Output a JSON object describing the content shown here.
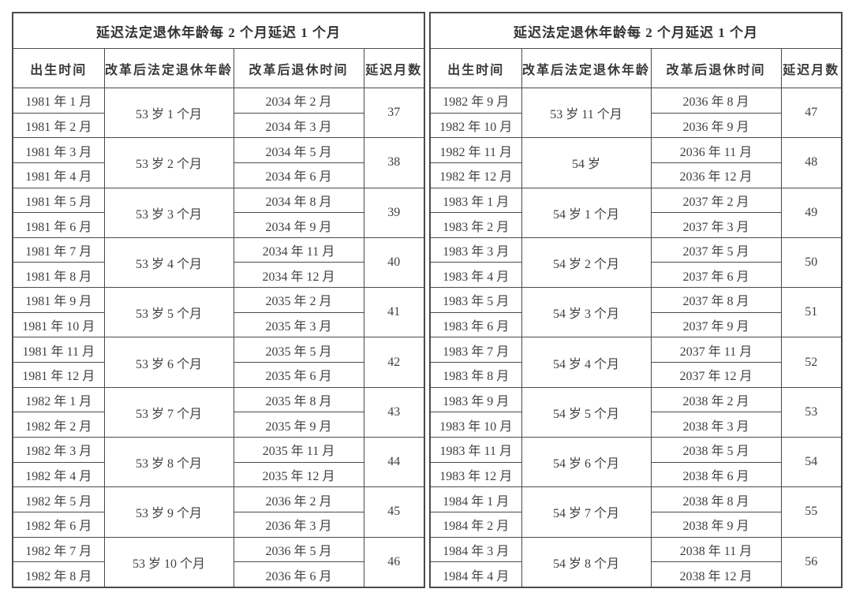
{
  "colors": {
    "background": "#ffffff",
    "border": "#4a4a4a",
    "text": "#404040",
    "header_text": "#333333"
  },
  "tables": [
    {
      "title": "延迟法定退休年龄每 2 个月延迟 1 个月",
      "columns": [
        "出生时间",
        "改革后法定退休年龄",
        "改革后退休时间",
        "延迟月数"
      ],
      "groups": [
        {
          "births": [
            "1981 年 1 月",
            "1981 年 2 月"
          ],
          "age": "53 岁 1 个月",
          "retirements": [
            "2034 年 2 月",
            "2034 年 3 月"
          ],
          "delay_months": "37"
        },
        {
          "births": [
            "1981 年 3 月",
            "1981 年 4 月"
          ],
          "age": "53 岁 2 个月",
          "retirements": [
            "2034 年 5 月",
            "2034 年 6 月"
          ],
          "delay_months": "38"
        },
        {
          "births": [
            "1981 年 5 月",
            "1981 年 6 月"
          ],
          "age": "53 岁 3 个月",
          "retirements": [
            "2034 年 8 月",
            "2034 年 9 月"
          ],
          "delay_months": "39"
        },
        {
          "births": [
            "1981 年 7 月",
            "1981 年 8 月"
          ],
          "age": "53 岁 4 个月",
          "retirements": [
            "2034 年 11 月",
            "2034 年 12 月"
          ],
          "delay_months": "40"
        },
        {
          "births": [
            "1981 年 9 月",
            "1981 年 10 月"
          ],
          "age": "53 岁 5 个月",
          "retirements": [
            "2035 年 2 月",
            "2035 年 3 月"
          ],
          "delay_months": "41"
        },
        {
          "births": [
            "1981 年 11 月",
            "1981 年 12 月"
          ],
          "age": "53 岁 6 个月",
          "retirements": [
            "2035 年 5 月",
            "2035 年 6 月"
          ],
          "delay_months": "42"
        },
        {
          "births": [
            "1982 年 1 月",
            "1982 年 2 月"
          ],
          "age": "53 岁 7 个月",
          "retirements": [
            "2035 年 8 月",
            "2035 年 9 月"
          ],
          "delay_months": "43"
        },
        {
          "births": [
            "1982 年 3 月",
            "1982 年 4 月"
          ],
          "age": "53 岁 8 个月",
          "retirements": [
            "2035 年 11 月",
            "2035 年 12 月"
          ],
          "delay_months": "44"
        },
        {
          "births": [
            "1982 年 5 月",
            "1982 年 6 月"
          ],
          "age": "53 岁 9 个月",
          "retirements": [
            "2036 年 2 月",
            "2036 年 3 月"
          ],
          "delay_months": "45"
        },
        {
          "births": [
            "1982 年 7 月",
            "1982 年 8 月"
          ],
          "age": "53 岁 10 个月",
          "retirements": [
            "2036 年 5 月",
            "2036 年 6 月"
          ],
          "delay_months": "46"
        }
      ]
    },
    {
      "title": "延迟法定退休年龄每 2 个月延迟 1 个月",
      "columns": [
        "出生时间",
        "改革后法定退休年龄",
        "改革后退休时间",
        "延迟月数"
      ],
      "groups": [
        {
          "births": [
            "1982 年 9 月",
            "1982 年 10 月"
          ],
          "age": "53 岁 11 个月",
          "retirements": [
            "2036 年 8 月",
            "2036 年 9 月"
          ],
          "delay_months": "47"
        },
        {
          "births": [
            "1982 年 11 月",
            "1982 年 12 月"
          ],
          "age": "54 岁",
          "retirements": [
            "2036 年 11 月",
            "2036 年 12 月"
          ],
          "delay_months": "48"
        },
        {
          "births": [
            "1983 年 1 月",
            "1983 年 2 月"
          ],
          "age": "54 岁 1 个月",
          "retirements": [
            "2037 年 2 月",
            "2037 年 3 月"
          ],
          "delay_months": "49"
        },
        {
          "births": [
            "1983 年 3 月",
            "1983 年 4 月"
          ],
          "age": "54 岁 2 个月",
          "retirements": [
            "2037 年 5 月",
            "2037 年 6 月"
          ],
          "delay_months": "50"
        },
        {
          "births": [
            "1983 年 5 月",
            "1983 年 6 月"
          ],
          "age": "54 岁 3 个月",
          "retirements": [
            "2037 年 8 月",
            "2037 年 9 月"
          ],
          "delay_months": "51"
        },
        {
          "births": [
            "1983 年 7 月",
            "1983 年 8 月"
          ],
          "age": "54 岁 4 个月",
          "retirements": [
            "2037 年 11 月",
            "2037 年 12 月"
          ],
          "delay_months": "52"
        },
        {
          "births": [
            "1983 年 9 月",
            "1983 年 10 月"
          ],
          "age": "54 岁 5 个月",
          "retirements": [
            "2038 年 2 月",
            "2038 年 3 月"
          ],
          "delay_months": "53"
        },
        {
          "births": [
            "1983 年 11 月",
            "1983 年 12 月"
          ],
          "age": "54 岁 6 个月",
          "retirements": [
            "2038 年 5 月",
            "2038 年 6 月"
          ],
          "delay_months": "54"
        },
        {
          "births": [
            "1984 年 1 月",
            "1984 年 2 月"
          ],
          "age": "54 岁 7 个月",
          "retirements": [
            "2038 年 8 月",
            "2038 年 9 月"
          ],
          "delay_months": "55"
        },
        {
          "births": [
            "1984 年 3 月",
            "1984 年 4 月"
          ],
          "age": "54 岁 8 个月",
          "retirements": [
            "2038 年 11 月",
            "2038 年 12 月"
          ],
          "delay_months": "56"
        }
      ]
    }
  ]
}
